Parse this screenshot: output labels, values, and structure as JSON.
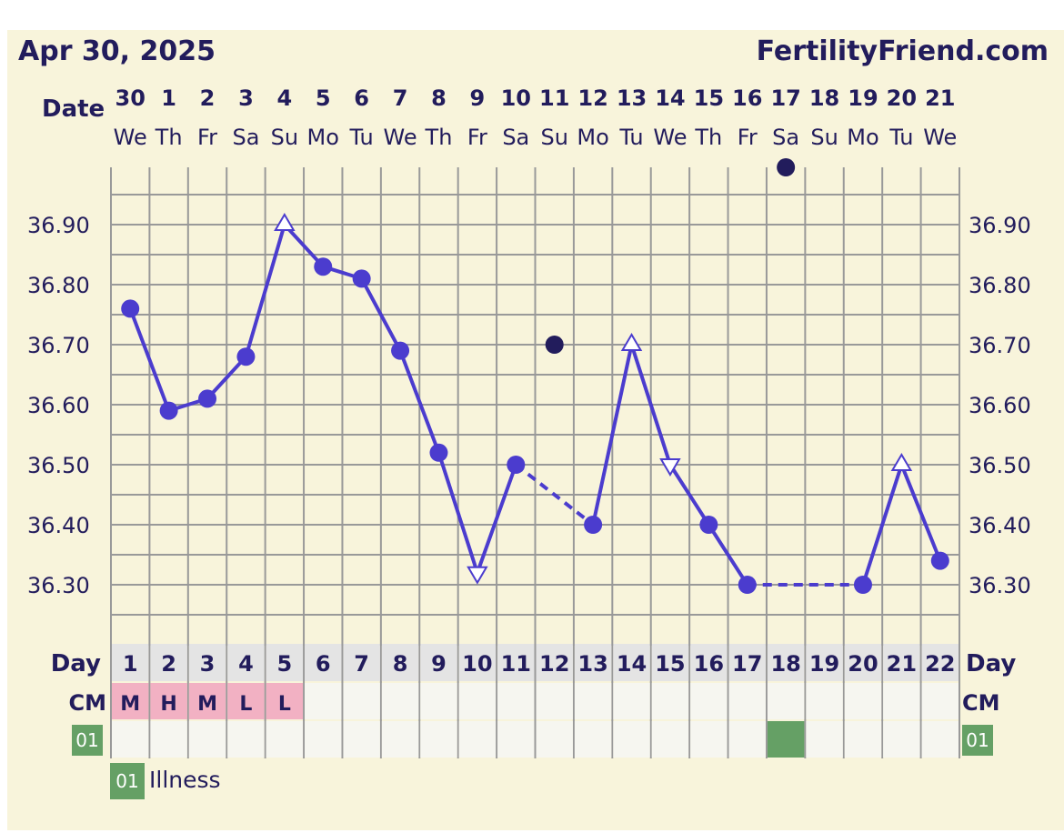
{
  "header": {
    "date": "Apr 30, 2025",
    "site": "FertilityFriend.com"
  },
  "labels": {
    "date": "Date",
    "day": "Day",
    "cm": "CM"
  },
  "colors": {
    "bg": "#f8f4db",
    "line": "#4b3cce",
    "text": "#221c5c",
    "grid": "#999999",
    "cm": "#f2b1c3",
    "marker": "#65a065"
  },
  "chart_data": {
    "type": "line",
    "title": "",
    "dates": [
      "30",
      "1",
      "2",
      "3",
      "4",
      "5",
      "6",
      "7",
      "8",
      "9",
      "10",
      "11",
      "12",
      "13",
      "14",
      "15",
      "16",
      "17",
      "18",
      "19",
      "20",
      "21"
    ],
    "weekdays": [
      "We",
      "Th",
      "Fr",
      "Sa",
      "Su",
      "Mo",
      "Tu",
      "We",
      "Th",
      "Fr",
      "Sa",
      "Su",
      "Mo",
      "Tu",
      "We",
      "Th",
      "Fr",
      "Sa",
      "Su",
      "Mo",
      "Tu",
      "We"
    ],
    "days": [
      1,
      2,
      3,
      4,
      5,
      6,
      7,
      8,
      9,
      10,
      11,
      12,
      13,
      14,
      15,
      16,
      17,
      18,
      19,
      20,
      21,
      22
    ],
    "ylim": [
      36.2,
      37.0
    ],
    "yticks": [
      "36.90",
      "36.80",
      "36.70",
      "36.60",
      "36.50",
      "36.40",
      "36.30"
    ],
    "temps": [
      36.76,
      36.59,
      36.61,
      36.68,
      36.9,
      36.83,
      36.81,
      36.69,
      36.52,
      36.32,
      36.5,
      null,
      36.4,
      36.7,
      36.5,
      36.4,
      36.3,
      null,
      null,
      36.3,
      36.5,
      36.34
    ],
    "markers": [
      "circle",
      "circle",
      "circle",
      "circle",
      "tri-up",
      "circle",
      "circle",
      "circle",
      "circle",
      "tri-down",
      "circle",
      null,
      "circle",
      "tri-up",
      "tri-down",
      "circle",
      "circle",
      null,
      null,
      "circle",
      "tri-up",
      "circle"
    ],
    "dark_dots": [
      {
        "day": 12,
        "value": 36.7
      },
      {
        "day": 18,
        "value": 37.0
      }
    ],
    "cm": [
      "M",
      "H",
      "M",
      "L",
      "L",
      "",
      "",
      "",
      "",
      "",
      "",
      "",
      "",
      "",
      "",
      "",
      "",
      "",
      "",
      "",
      "",
      ""
    ],
    "custom_row": {
      "code": "01",
      "days": [
        18
      ]
    },
    "legend": [
      {
        "code": "01",
        "label": "Illness"
      }
    ]
  }
}
